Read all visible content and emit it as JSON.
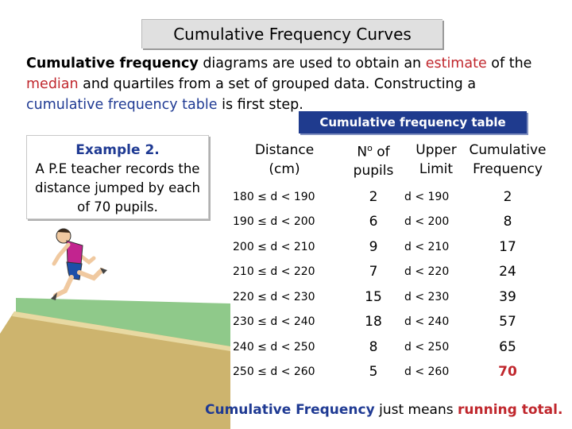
{
  "title": "Cumulative Frequency Curves",
  "intro": {
    "term": "Cumulative frequency",
    "part1": " diagrams are used to obtain an ",
    "estimate": "estimate",
    "part2": " of the ",
    "median": "median",
    "part3": " and quartiles from a set of grouped data. Constructing a ",
    "cft": "cumulative frequency table",
    "part4": " is first step."
  },
  "table_tag": "Cumulative frequency table",
  "example": {
    "heading": "Example 2.",
    "text": "A P.E teacher records the distance jumped by each of 70 pupils."
  },
  "table": {
    "headers": {
      "distance": "Distance",
      "distance_unit": "(cm)",
      "count_no": "N",
      "count_o": "o",
      "count_of": " of",
      "count_pupils": "pupils",
      "upper": "Upper",
      "upper_limit": "Limit",
      "cum": "Cumulative",
      "cum2": "Frequency"
    },
    "rows": [
      {
        "interval": "180 ≤ d  < 190",
        "freq": "2",
        "upper": "d  < 190",
        "cum": "2"
      },
      {
        "interval": "190 ≤ d  < 200",
        "freq": "6",
        "upper": "d  < 200",
        "cum": "8"
      },
      {
        "interval": "200 ≤ d  < 210",
        "freq": "9",
        "upper": "d  < 210",
        "cum": "17"
      },
      {
        "interval": "210 ≤ d  < 220",
        "freq": "7",
        "upper": "d  < 220",
        "cum": "24"
      },
      {
        "interval": "220 ≤ d  < 230",
        "freq": "15",
        "upper": "d  < 230",
        "cum": "39"
      },
      {
        "interval": "230 ≤ d  < 240",
        "freq": "18",
        "upper": "d  < 240",
        "cum": "57"
      },
      {
        "interval": "240 ≤ d  < 250",
        "freq": "8",
        "upper": "d  < 250",
        "cum": "65"
      },
      {
        "interval": "250 ≤ d  < 260",
        "freq": "5",
        "upper": "d  < 260",
        "cum": "70"
      }
    ]
  },
  "footer": {
    "label": "Cumulative Frequency",
    "middle": " just means ",
    "emph": "running total."
  },
  "colors": {
    "accent_blue": "#1f3b8e",
    "accent_red": "#c0272d",
    "title_bg": "#e0e0e0",
    "sand_pit": "#c8b06a",
    "grass": "#8fc98a"
  },
  "icons": [
    "long-jumper-illustration",
    "sand-pit-illustration"
  ]
}
